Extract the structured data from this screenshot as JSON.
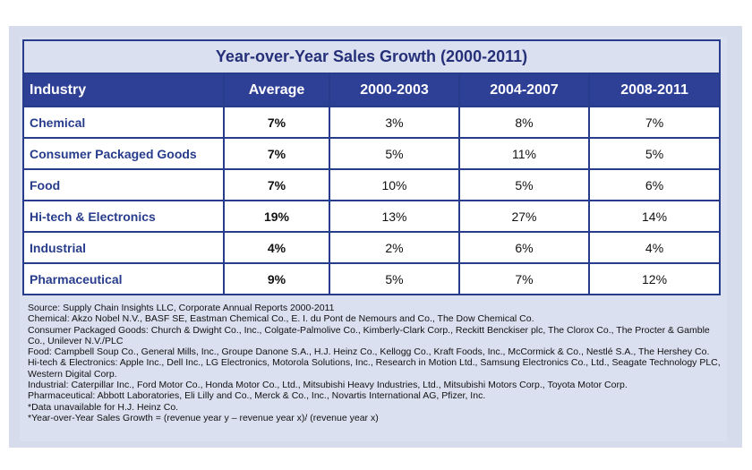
{
  "title": "Year-over-Year Sales Growth (2000-2011)",
  "columns": [
    "Industry",
    "Average",
    "2000-2003",
    "2004-2007",
    "2008-2011"
  ],
  "rows": [
    {
      "industry": "Chemical",
      "average": "7%",
      "p1": "3%",
      "p2": "8%",
      "p3": "7%"
    },
    {
      "industry": "Consumer Packaged Goods",
      "average": "7%",
      "p1": "5%",
      "p2": "11%",
      "p3": "5%"
    },
    {
      "industry": "Food",
      "average": "7%",
      "p1": "10%",
      "p2": "5%",
      "p3": "6%"
    },
    {
      "industry": "Hi-tech & Electronics",
      "average": "19%",
      "p1": "13%",
      "p2": "27%",
      "p3": "14%"
    },
    {
      "industry": "Industrial",
      "average": "4%",
      "p1": "2%",
      "p2": "6%",
      "p3": "4%"
    },
    {
      "industry": "Pharmaceutical",
      "average": "9%",
      "p1": "5%",
      "p2": "7%",
      "p3": "12%"
    }
  ],
  "notes": [
    "Source: Supply Chain Insights LLC, Corporate Annual Reports 2000-2011",
    "Chemical: Akzo Nobel N.V., BASF SE, Eastman Chemical Co., E. I. du Pont de Nemours and Co., The Dow Chemical Co.",
    "Consumer Packaged Goods: Church & Dwight Co., Inc., Colgate-Palmolive Co., Kimberly-Clark Corp., Reckitt Benckiser plc, The Clorox Co., The Procter & Gamble Co., Unilever N.V./PLC",
    "Food: Campbell Soup Co., General Mills, Inc., Groupe Danone S.A., H.J. Heinz Co., Kellogg Co., Kraft Foods, Inc., McCormick & Co., Nestlé S.A., The Hershey Co.",
    "Hi-tech & Electronics: Apple Inc., Dell Inc., LG Electronics, Motorola Solutions, Inc., Research in Motion Ltd., Samsung Electronics Co., Ltd., Seagate Technology PLC, Western Digital Corp.",
    "Industrial: Caterpillar Inc., Ford Motor Co., Honda Motor Co., Ltd., Mitsubishi Heavy Industries, Ltd., Mitsubishi Motors Corp., Toyota Motor Corp.",
    "Pharmaceutical: Abbott Laboratories, Eli Lilly and Co., Merck & Co., Inc., Novartis International AG, Pfizer, Inc.",
    "*Data unavailable for H.J. Heinz Co.",
    "*Year-over-Year Sales Growth = (revenue year y – revenue year x)/ (revenue year x)"
  ],
  "colors": {
    "header_bg": "#2e3f96",
    "border": "#283c8c",
    "title_text": "#253079",
    "panel_bg": "#dbe0f0"
  }
}
